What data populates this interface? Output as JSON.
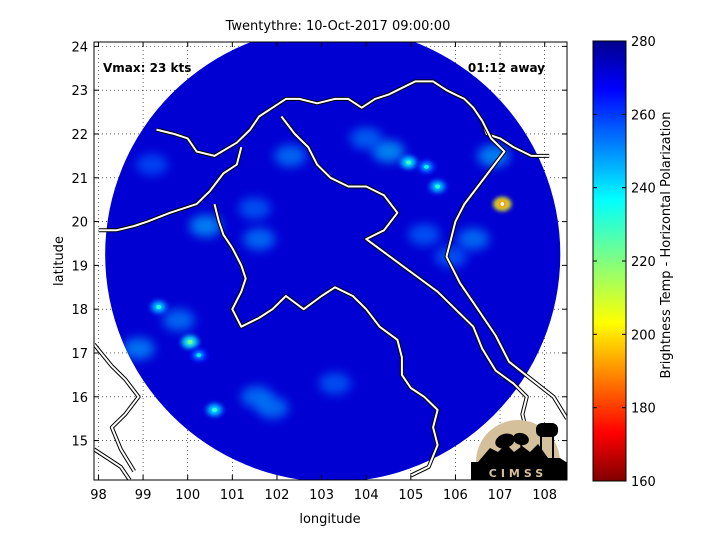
{
  "chart_data": {
    "type": "heatmap",
    "title": "Twentythre: 10-Oct-2017 09:00:00",
    "xlabel": "longitude",
    "ylabel": "latitude",
    "xlim": [
      97.9,
      108.5
    ],
    "ylim": [
      14.1,
      24.1
    ],
    "xticks": [
      98,
      99,
      100,
      101,
      102,
      103,
      104,
      105,
      106,
      107,
      108
    ],
    "yticks": [
      15,
      16,
      17,
      18,
      19,
      20,
      21,
      22,
      23,
      24
    ],
    "grid": "dotted",
    "annotations": {
      "vmax": "Vmax: 23 kts",
      "away": "01:12 away"
    },
    "storm_position": {
      "lon": 107.05,
      "lat": 20.4
    },
    "colorbar": {
      "label": "Brightness Temp - Horizontal Polarization",
      "min": 160,
      "max": 280,
      "ticks": [
        160,
        180,
        200,
        220,
        240,
        260,
        280
      ],
      "colormap": "jet"
    },
    "swath": {
      "center": {
        "lon": 103.25,
        "lat": 19.25
      },
      "radius_deg": 5.1
    },
    "background_value": 272,
    "features": [
      {
        "lon": 107.05,
        "lat": 20.4,
        "value": 182
      },
      {
        "lon": 104.95,
        "lat": 21.35,
        "value": 228
      },
      {
        "lon": 105.6,
        "lat": 20.8,
        "value": 232
      },
      {
        "lon": 105.35,
        "lat": 21.25,
        "value": 238
      },
      {
        "lon": 104.5,
        "lat": 21.6,
        "value": 245
      },
      {
        "lon": 106.85,
        "lat": 21.5,
        "value": 246
      },
      {
        "lon": 100.05,
        "lat": 17.25,
        "value": 222
      },
      {
        "lon": 99.35,
        "lat": 18.05,
        "value": 232
      },
      {
        "lon": 100.25,
        "lat": 16.95,
        "value": 240
      },
      {
        "lon": 100.6,
        "lat": 15.7,
        "value": 230
      },
      {
        "lon": 98.9,
        "lat": 17.1,
        "value": 248
      },
      {
        "lon": 99.8,
        "lat": 17.75,
        "value": 250
      },
      {
        "lon": 101.55,
        "lat": 16.0,
        "value": 250
      },
      {
        "lon": 101.9,
        "lat": 15.75,
        "value": 250
      },
      {
        "lon": 103.3,
        "lat": 16.3,
        "value": 254
      },
      {
        "lon": 100.4,
        "lat": 19.9,
        "value": 246
      },
      {
        "lon": 101.6,
        "lat": 19.6,
        "value": 250
      },
      {
        "lon": 102.3,
        "lat": 21.5,
        "value": 250
      },
      {
        "lon": 101.5,
        "lat": 20.3,
        "value": 254
      },
      {
        "lon": 105.3,
        "lat": 19.7,
        "value": 254
      },
      {
        "lon": 104.0,
        "lat": 21.9,
        "value": 252
      },
      {
        "lon": 99.2,
        "lat": 21.3,
        "value": 256
      },
      {
        "lon": 106.4,
        "lat": 19.6,
        "value": 250
      },
      {
        "lon": 105.9,
        "lat": 19.2,
        "value": 254
      }
    ],
    "boundaries": [
      [
        [
          99.3,
          22.1
        ],
        [
          99.7,
          22.0
        ],
        [
          100.0,
          21.9
        ],
        [
          100.2,
          21.6
        ],
        [
          100.6,
          21.5
        ],
        [
          101.1,
          21.8
        ],
        [
          101.4,
          22.1
        ],
        [
          101.6,
          22.4
        ],
        [
          101.9,
          22.6
        ],
        [
          102.2,
          22.8
        ],
        [
          102.5,
          22.8
        ],
        [
          102.9,
          22.7
        ],
        [
          103.3,
          22.8
        ],
        [
          103.6,
          22.8
        ],
        [
          103.9,
          22.6
        ],
        [
          104.2,
          22.8
        ],
        [
          104.5,
          22.9
        ],
        [
          104.7,
          23.0
        ],
        [
          105.1,
          23.2
        ],
        [
          105.5,
          23.2
        ],
        [
          105.8,
          23.0
        ],
        [
          106.0,
          22.9
        ],
        [
          106.2,
          22.8
        ],
        [
          106.4,
          22.6
        ],
        [
          106.6,
          22.3
        ],
        [
          106.7,
          22.0
        ],
        [
          107.0,
          21.9
        ],
        [
          107.3,
          21.7
        ],
        [
          107.7,
          21.5
        ],
        [
          108.1,
          21.5
        ]
      ],
      [
        [
          98.0,
          19.8
        ],
        [
          98.4,
          19.8
        ],
        [
          98.8,
          19.9
        ],
        [
          99.1,
          20.0
        ],
        [
          99.6,
          20.2
        ],
        [
          100.2,
          20.4
        ],
        [
          100.5,
          20.7
        ],
        [
          100.8,
          21.1
        ],
        [
          101.1,
          21.3
        ],
        [
          101.2,
          21.7
        ]
      ],
      [
        [
          100.6,
          20.4
        ],
        [
          100.7,
          20.0
        ],
        [
          100.8,
          19.7
        ],
        [
          101.0,
          19.4
        ],
        [
          101.2,
          19.0
        ],
        [
          101.3,
          18.7
        ],
        [
          101.2,
          18.4
        ],
        [
          101.0,
          18.0
        ],
        [
          101.2,
          17.6
        ],
        [
          101.6,
          17.8
        ],
        [
          101.9,
          18.0
        ],
        [
          102.2,
          18.3
        ],
        [
          102.6,
          18.0
        ],
        [
          103.0,
          18.3
        ],
        [
          103.3,
          18.5
        ],
        [
          103.7,
          18.3
        ],
        [
          104.0,
          18.0
        ],
        [
          104.3,
          17.6
        ],
        [
          104.7,
          17.3
        ],
        [
          104.8,
          16.9
        ],
        [
          104.8,
          16.5
        ],
        [
          105.0,
          16.2
        ],
        [
          105.3,
          16.0
        ],
        [
          105.6,
          15.7
        ],
        [
          105.5,
          15.3
        ],
        [
          105.6,
          14.9
        ],
        [
          105.4,
          14.4
        ],
        [
          105.0,
          14.2
        ]
      ],
      [
        [
          102.1,
          22.4
        ],
        [
          102.4,
          22.0
        ],
        [
          102.7,
          21.7
        ],
        [
          102.9,
          21.3
        ],
        [
          103.2,
          21.0
        ],
        [
          103.6,
          20.8
        ],
        [
          104.0,
          20.8
        ],
        [
          104.4,
          20.6
        ],
        [
          104.7,
          20.2
        ],
        [
          104.4,
          19.8
        ],
        [
          104.0,
          19.6
        ],
        [
          104.4,
          19.3
        ],
        [
          104.8,
          19.0
        ],
        [
          105.2,
          18.7
        ],
        [
          105.6,
          18.4
        ],
        [
          106.0,
          18.0
        ],
        [
          106.4,
          17.6
        ],
        [
          106.6,
          17.1
        ],
        [
          106.9,
          16.6
        ],
        [
          107.3,
          16.3
        ],
        [
          107.6,
          16.0
        ],
        [
          107.5,
          15.6
        ],
        [
          107.6,
          15.2
        ],
        [
          107.5,
          14.7
        ]
      ],
      [
        [
          106.6,
          22.3
        ],
        [
          106.8,
          21.9
        ],
        [
          107.1,
          21.6
        ],
        [
          106.8,
          21.2
        ],
        [
          106.5,
          20.8
        ],
        [
          106.2,
          20.4
        ],
        [
          106.0,
          20.0
        ],
        [
          105.9,
          19.6
        ],
        [
          105.8,
          19.2
        ],
        [
          106.1,
          18.6
        ],
        [
          106.5,
          18.0
        ],
        [
          106.9,
          17.4
        ],
        [
          107.2,
          16.8
        ],
        [
          107.7,
          16.4
        ],
        [
          108.2,
          16.0
        ],
        [
          108.5,
          15.5
        ]
      ],
      [
        [
          97.9,
          17.2
        ],
        [
          98.3,
          16.7
        ],
        [
          98.6,
          16.4
        ],
        [
          98.9,
          16.0
        ],
        [
          98.6,
          15.6
        ],
        [
          98.3,
          15.3
        ],
        [
          98.5,
          14.8
        ],
        [
          98.8,
          14.3
        ]
      ],
      [
        [
          97.9,
          14.8
        ],
        [
          98.2,
          14.6
        ],
        [
          98.5,
          14.4
        ],
        [
          98.7,
          14.1
        ]
      ]
    ]
  }
}
